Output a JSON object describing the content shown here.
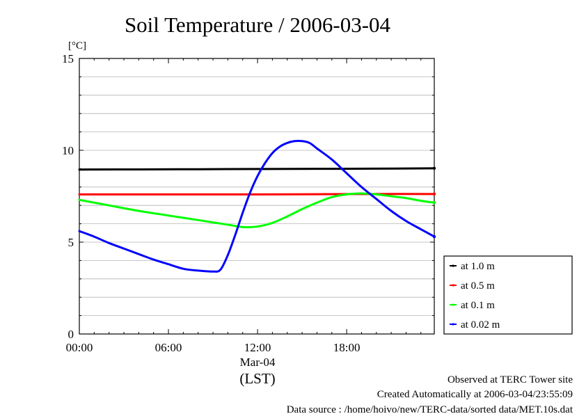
{
  "chart_data": {
    "type": "line",
    "title": "Soil Temperature / 2006-03-04",
    "ylabel": "[°C]",
    "xlabel": "(LST)",
    "date_label": "Mar-04",
    "xlim": [
      0,
      23.9
    ],
    "ylim": [
      0,
      15
    ],
    "x_ticks": [
      {
        "value": 0,
        "label": "00:00"
      },
      {
        "value": 6,
        "label": "06:00"
      },
      {
        "value": 12,
        "label": "12:00"
      },
      {
        "value": 18,
        "label": "18:00"
      }
    ],
    "y_ticks": [
      {
        "value": 0,
        "label": "0"
      },
      {
        "value": 5,
        "label": "5"
      },
      {
        "value": 10,
        "label": "10"
      },
      {
        "value": 15,
        "label": "15"
      }
    ],
    "grid": true,
    "legend_position": "right",
    "series": [
      {
        "name": "at 1.0 m",
        "color": "#000000",
        "x": [
          0,
          4,
          8,
          12,
          16,
          20,
          23.9
        ],
        "y": [
          8.95,
          8.96,
          8.97,
          8.98,
          8.99,
          9.0,
          9.02
        ]
      },
      {
        "name": "at 0.5 m",
        "color": "#ff0000",
        "x": [
          0,
          4,
          8,
          12,
          16,
          20,
          23.9
        ],
        "y": [
          7.6,
          7.6,
          7.6,
          7.6,
          7.61,
          7.62,
          7.62
        ]
      },
      {
        "name": "at 0.1 m",
        "color": "#00ff00",
        "x": [
          0,
          2,
          4,
          6,
          8,
          10,
          11,
          12,
          13,
          14,
          15,
          16,
          17,
          18,
          19,
          20,
          21,
          22,
          23,
          23.9
        ],
        "y": [
          7.3,
          7.0,
          6.7,
          6.45,
          6.2,
          5.95,
          5.82,
          5.85,
          6.05,
          6.4,
          6.8,
          7.15,
          7.45,
          7.6,
          7.65,
          7.6,
          7.5,
          7.4,
          7.25,
          7.15
        ]
      },
      {
        "name": "at 0.02 m",
        "color": "#0000ff",
        "x": [
          0,
          1,
          2,
          3,
          4,
          5,
          6,
          7,
          8,
          9,
          9.5,
          10,
          10.5,
          11,
          11.5,
          12,
          12.5,
          13,
          13.5,
          14,
          14.5,
          15,
          15.5,
          16,
          17,
          18,
          19,
          20,
          21,
          22,
          23,
          23.9
        ],
        "y": [
          5.6,
          5.3,
          4.95,
          4.65,
          4.35,
          4.05,
          3.8,
          3.55,
          3.45,
          3.4,
          3.5,
          4.3,
          5.4,
          6.6,
          7.7,
          8.6,
          9.3,
          9.85,
          10.2,
          10.4,
          10.5,
          10.5,
          10.4,
          10.1,
          9.5,
          8.75,
          8.0,
          7.35,
          6.7,
          6.15,
          5.7,
          5.3
        ]
      }
    ]
  },
  "footer": {
    "line1": "Observed at TERC Tower site",
    "line2": "Created Automatically at 2006-03-04/23:55:09",
    "line3": "Data source : /home/hoivo/new/TERC-data/sorted  data/MET.10s.dat"
  }
}
